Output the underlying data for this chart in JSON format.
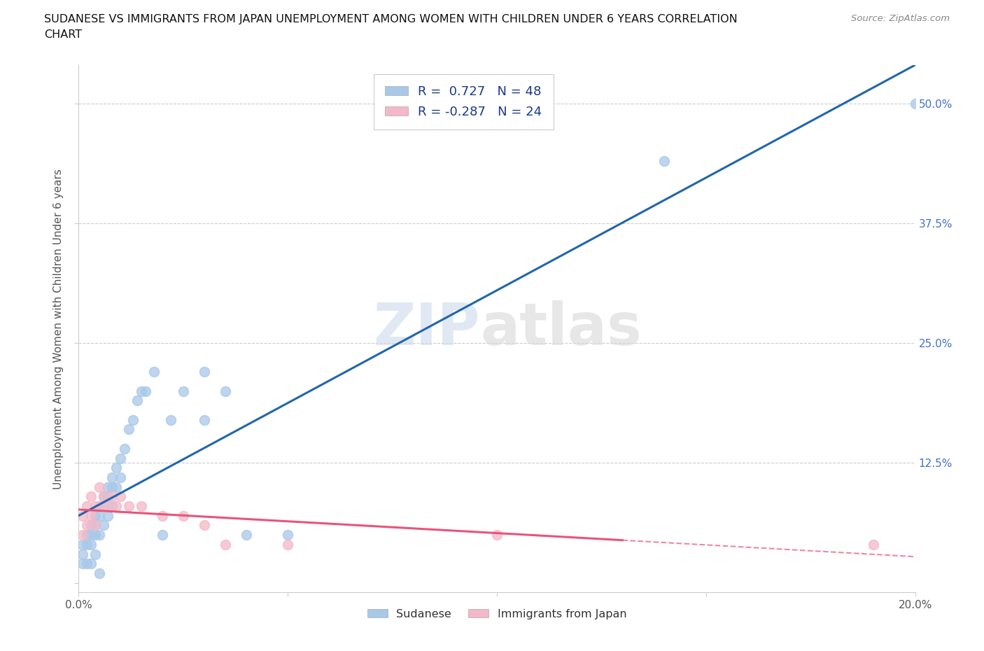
{
  "title_line1": "SUDANESE VS IMMIGRANTS FROM JAPAN UNEMPLOYMENT AMONG WOMEN WITH CHILDREN UNDER 6 YEARS CORRELATION",
  "title_line2": "CHART",
  "source": "Source: ZipAtlas.com",
  "ylabel": "Unemployment Among Women with Children Under 6 years",
  "xlim": [
    0.0,
    0.2
  ],
  "ylim": [
    -0.01,
    0.54
  ],
  "blue_color": "#a8c8e8",
  "pink_color": "#f4b8c8",
  "line_blue": "#2166ac",
  "line_pink": "#e8547a",
  "R_blue": 0.727,
  "N_blue": 48,
  "R_pink": -0.287,
  "N_pink": 24,
  "sudanese_x": [
    0.001,
    0.001,
    0.001,
    0.002,
    0.002,
    0.002,
    0.003,
    0.003,
    0.003,
    0.003,
    0.004,
    0.004,
    0.004,
    0.004,
    0.005,
    0.005,
    0.005,
    0.005,
    0.006,
    0.006,
    0.006,
    0.007,
    0.007,
    0.007,
    0.008,
    0.008,
    0.008,
    0.009,
    0.009,
    0.01,
    0.01,
    0.011,
    0.012,
    0.013,
    0.014,
    0.015,
    0.016,
    0.018,
    0.02,
    0.022,
    0.025,
    0.03,
    0.03,
    0.035,
    0.04,
    0.05,
    0.14,
    0.2
  ],
  "sudanese_y": [
    0.04,
    0.03,
    0.02,
    0.05,
    0.04,
    0.02,
    0.06,
    0.05,
    0.04,
    0.02,
    0.07,
    0.06,
    0.05,
    0.03,
    0.08,
    0.07,
    0.05,
    0.01,
    0.09,
    0.08,
    0.06,
    0.1,
    0.09,
    0.07,
    0.11,
    0.1,
    0.08,
    0.12,
    0.1,
    0.13,
    0.11,
    0.14,
    0.16,
    0.17,
    0.19,
    0.2,
    0.2,
    0.22,
    0.05,
    0.17,
    0.2,
    0.22,
    0.17,
    0.2,
    0.05,
    0.05,
    0.44,
    0.5
  ],
  "japan_x": [
    0.001,
    0.001,
    0.002,
    0.002,
    0.003,
    0.003,
    0.004,
    0.004,
    0.005,
    0.005,
    0.006,
    0.007,
    0.008,
    0.009,
    0.01,
    0.012,
    0.015,
    0.02,
    0.025,
    0.03,
    0.035,
    0.05,
    0.1,
    0.19
  ],
  "japan_y": [
    0.07,
    0.05,
    0.08,
    0.06,
    0.09,
    0.07,
    0.08,
    0.06,
    0.1,
    0.08,
    0.09,
    0.08,
    0.09,
    0.08,
    0.09,
    0.08,
    0.08,
    0.07,
    0.07,
    0.06,
    0.04,
    0.04,
    0.05,
    0.04
  ],
  "watermark_zip": "ZIP",
  "watermark_atlas": "atlas",
  "background_color": "#ffffff",
  "grid_color": "#cccccc",
  "tick_color_right": "#4472c4",
  "legend_label_blue": "R =  0.727   N = 48",
  "legend_label_pink": "R = -0.287   N = 24"
}
